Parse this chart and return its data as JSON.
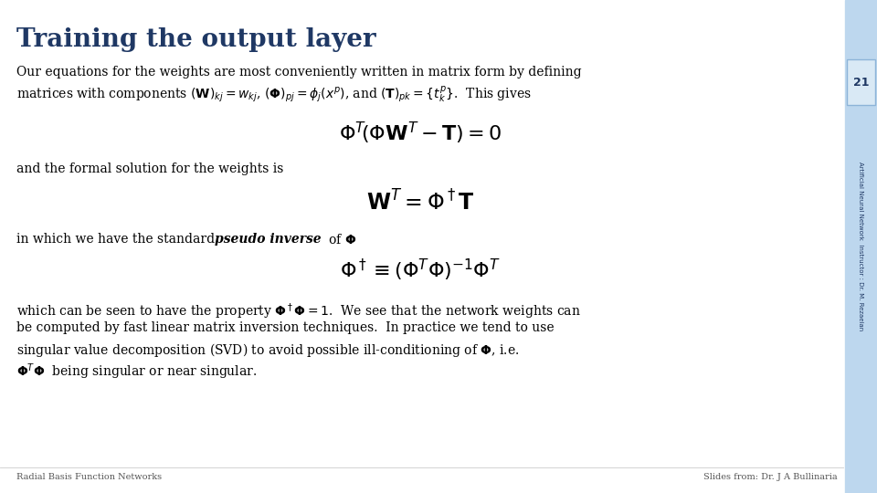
{
  "title": "Training the output layer",
  "title_color": "#1F3864",
  "title_fontsize": 20,
  "bg_color": "#FFFFFF",
  "sidebar_color": "#BDD7EE",
  "slide_number": "21",
  "slide_number_color": "#1F3864",
  "footer_left": "Radial Basis Function Networks",
  "footer_right": "Slides from: Dr. J A Bullinaria",
  "footer_color": "#555555",
  "sidebar_label": "Artificial Neural Network  Instructor : Dr. M. Rezaeian",
  "body_text_color": "#000000",
  "body_fontsize": 10,
  "eq1": "$\\Phi^T\\!\\left(\\Phi\\mathbf{W}^T - \\mathbf{T}\\right) = 0$",
  "eq2": "$\\mathbf{W}^T = \\Phi^\\dagger\\mathbf{T}$",
  "eq3": "$\\Phi^\\dagger \\equiv \\left(\\Phi^T\\Phi\\right)^{-1}\\Phi^T$"
}
